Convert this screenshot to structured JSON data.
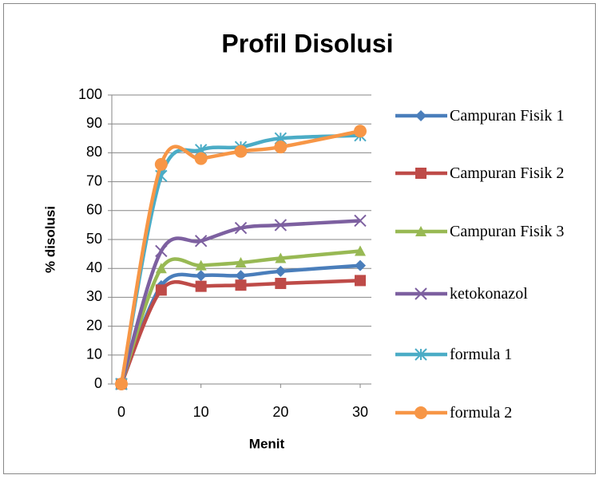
{
  "chart_data": {
    "type": "line",
    "title": "Profil Disolusi",
    "x_label": "Menit",
    "y_label": "% disolusi",
    "x": [
      0,
      5,
      10,
      15,
      20,
      30
    ],
    "series": [
      {
        "name": "Campuran Fisik 1",
        "color": "#4a7ebb",
        "marker": "diamond",
        "values": [
          0,
          34,
          37.5,
          37.5,
          39,
          41
        ]
      },
      {
        "name": "Campuran Fisik 2",
        "color": "#be4b48",
        "marker": "square",
        "values": [
          0,
          32.5,
          33.8,
          34.2,
          34.8,
          35.8
        ]
      },
      {
        "name": "Campuran Fisik 3",
        "color": "#98b954",
        "marker": "triangle",
        "values": [
          0,
          40,
          41,
          42,
          43.5,
          46
        ]
      },
      {
        "name": "ketokonazol",
        "color": "#7d60a0",
        "marker": "x",
        "values": [
          0,
          46,
          49.5,
          54,
          55,
          56.5
        ]
      },
      {
        "name": "formula 1",
        "color": "#4bacc6",
        "marker": "star",
        "values": [
          0,
          72,
          81,
          82,
          85,
          86
        ]
      },
      {
        "name": "formula 2",
        "color": "#f79646",
        "marker": "circle",
        "values": [
          0,
          76,
          78,
          80.5,
          82,
          87.5
        ]
      }
    ],
    "xlim": [
      0,
      30
    ],
    "xticks": [
      0,
      10,
      20,
      30
    ],
    "ylim": [
      0,
      100
    ],
    "yticks": [
      0,
      10,
      20,
      30,
      40,
      50,
      60,
      70,
      80,
      90,
      100
    ],
    "grid": true,
    "smooth": true,
    "legend": "right"
  }
}
